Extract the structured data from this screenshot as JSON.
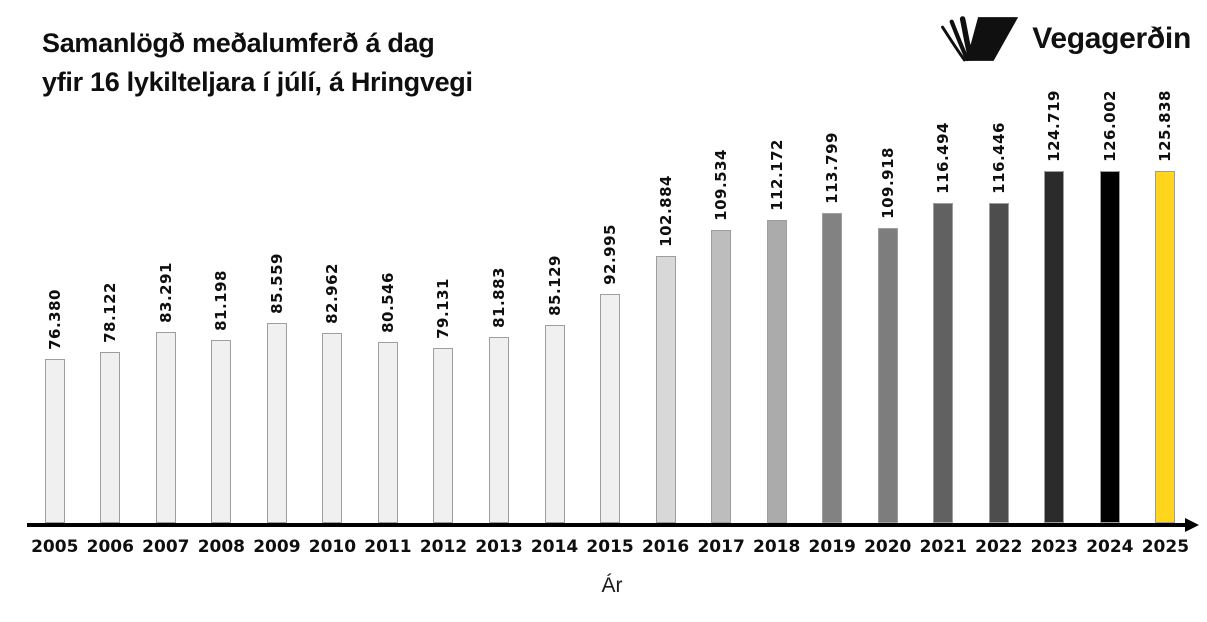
{
  "header": {
    "title_line1": "Samanlögð meðalumferð á dag",
    "title_line2": "yfir 16 lykilteljara í júlí, á Hringvegi",
    "logo_text": "Vegagerðin"
  },
  "chart_data": {
    "type": "bar",
    "title": "Samanlögð meðalumferð á dag yfir 16 lykilteljara í júlí, á Hringvegi",
    "xlabel": "Ár",
    "ylabel": "",
    "categories": [
      "2005",
      "2006",
      "2007",
      "2008",
      "2009",
      "2010",
      "2011",
      "2012",
      "2013",
      "2014",
      "2015",
      "2016",
      "2017",
      "2018",
      "2019",
      "2020",
      "2021",
      "2022",
      "2023",
      "2024",
      "2025"
    ],
    "values": [
      76380,
      78122,
      83291,
      81198,
      85559,
      82962,
      80546,
      79131,
      81883,
      85129,
      92995,
      102884,
      109534,
      112172,
      113799,
      109918,
      116494,
      116446,
      124719,
      126002,
      125838
    ],
    "value_labels": [
      "76.380",
      "78.122",
      "83.291",
      "81.198",
      "85.559",
      "82.962",
      "80.546",
      "79.131",
      "81.883",
      "85.129",
      "92.995",
      "102.884",
      "109.534",
      "112.172",
      "113.799",
      "109.918",
      "116.494",
      "116.446",
      "124.719",
      "126.002",
      "125.838"
    ],
    "bar_colors": [
      "#f0f0f0",
      "#f0f0f0",
      "#f0f0f0",
      "#f0f0f0",
      "#f0f0f0",
      "#f0f0f0",
      "#f0f0f0",
      "#f0f0f0",
      "#f0f0f0",
      "#f0f0f0",
      "#f0f0f0",
      "#d8d8d8",
      "#bdbdbd",
      "#ababab",
      "#828282",
      "#7d7d7d",
      "#616161",
      "#4d4d4d",
      "#2b2b2b",
      "#000000",
      "#ffd51e"
    ],
    "bar_border_color": "#9e9e9e",
    "axis_color": "#000000",
    "highlight_category": "2025",
    "highlight_color": "#ffd51e",
    "grid": false,
    "legend": false,
    "ylim": [
      34000,
      130000
    ],
    "value_labels_rotated_90": true
  }
}
